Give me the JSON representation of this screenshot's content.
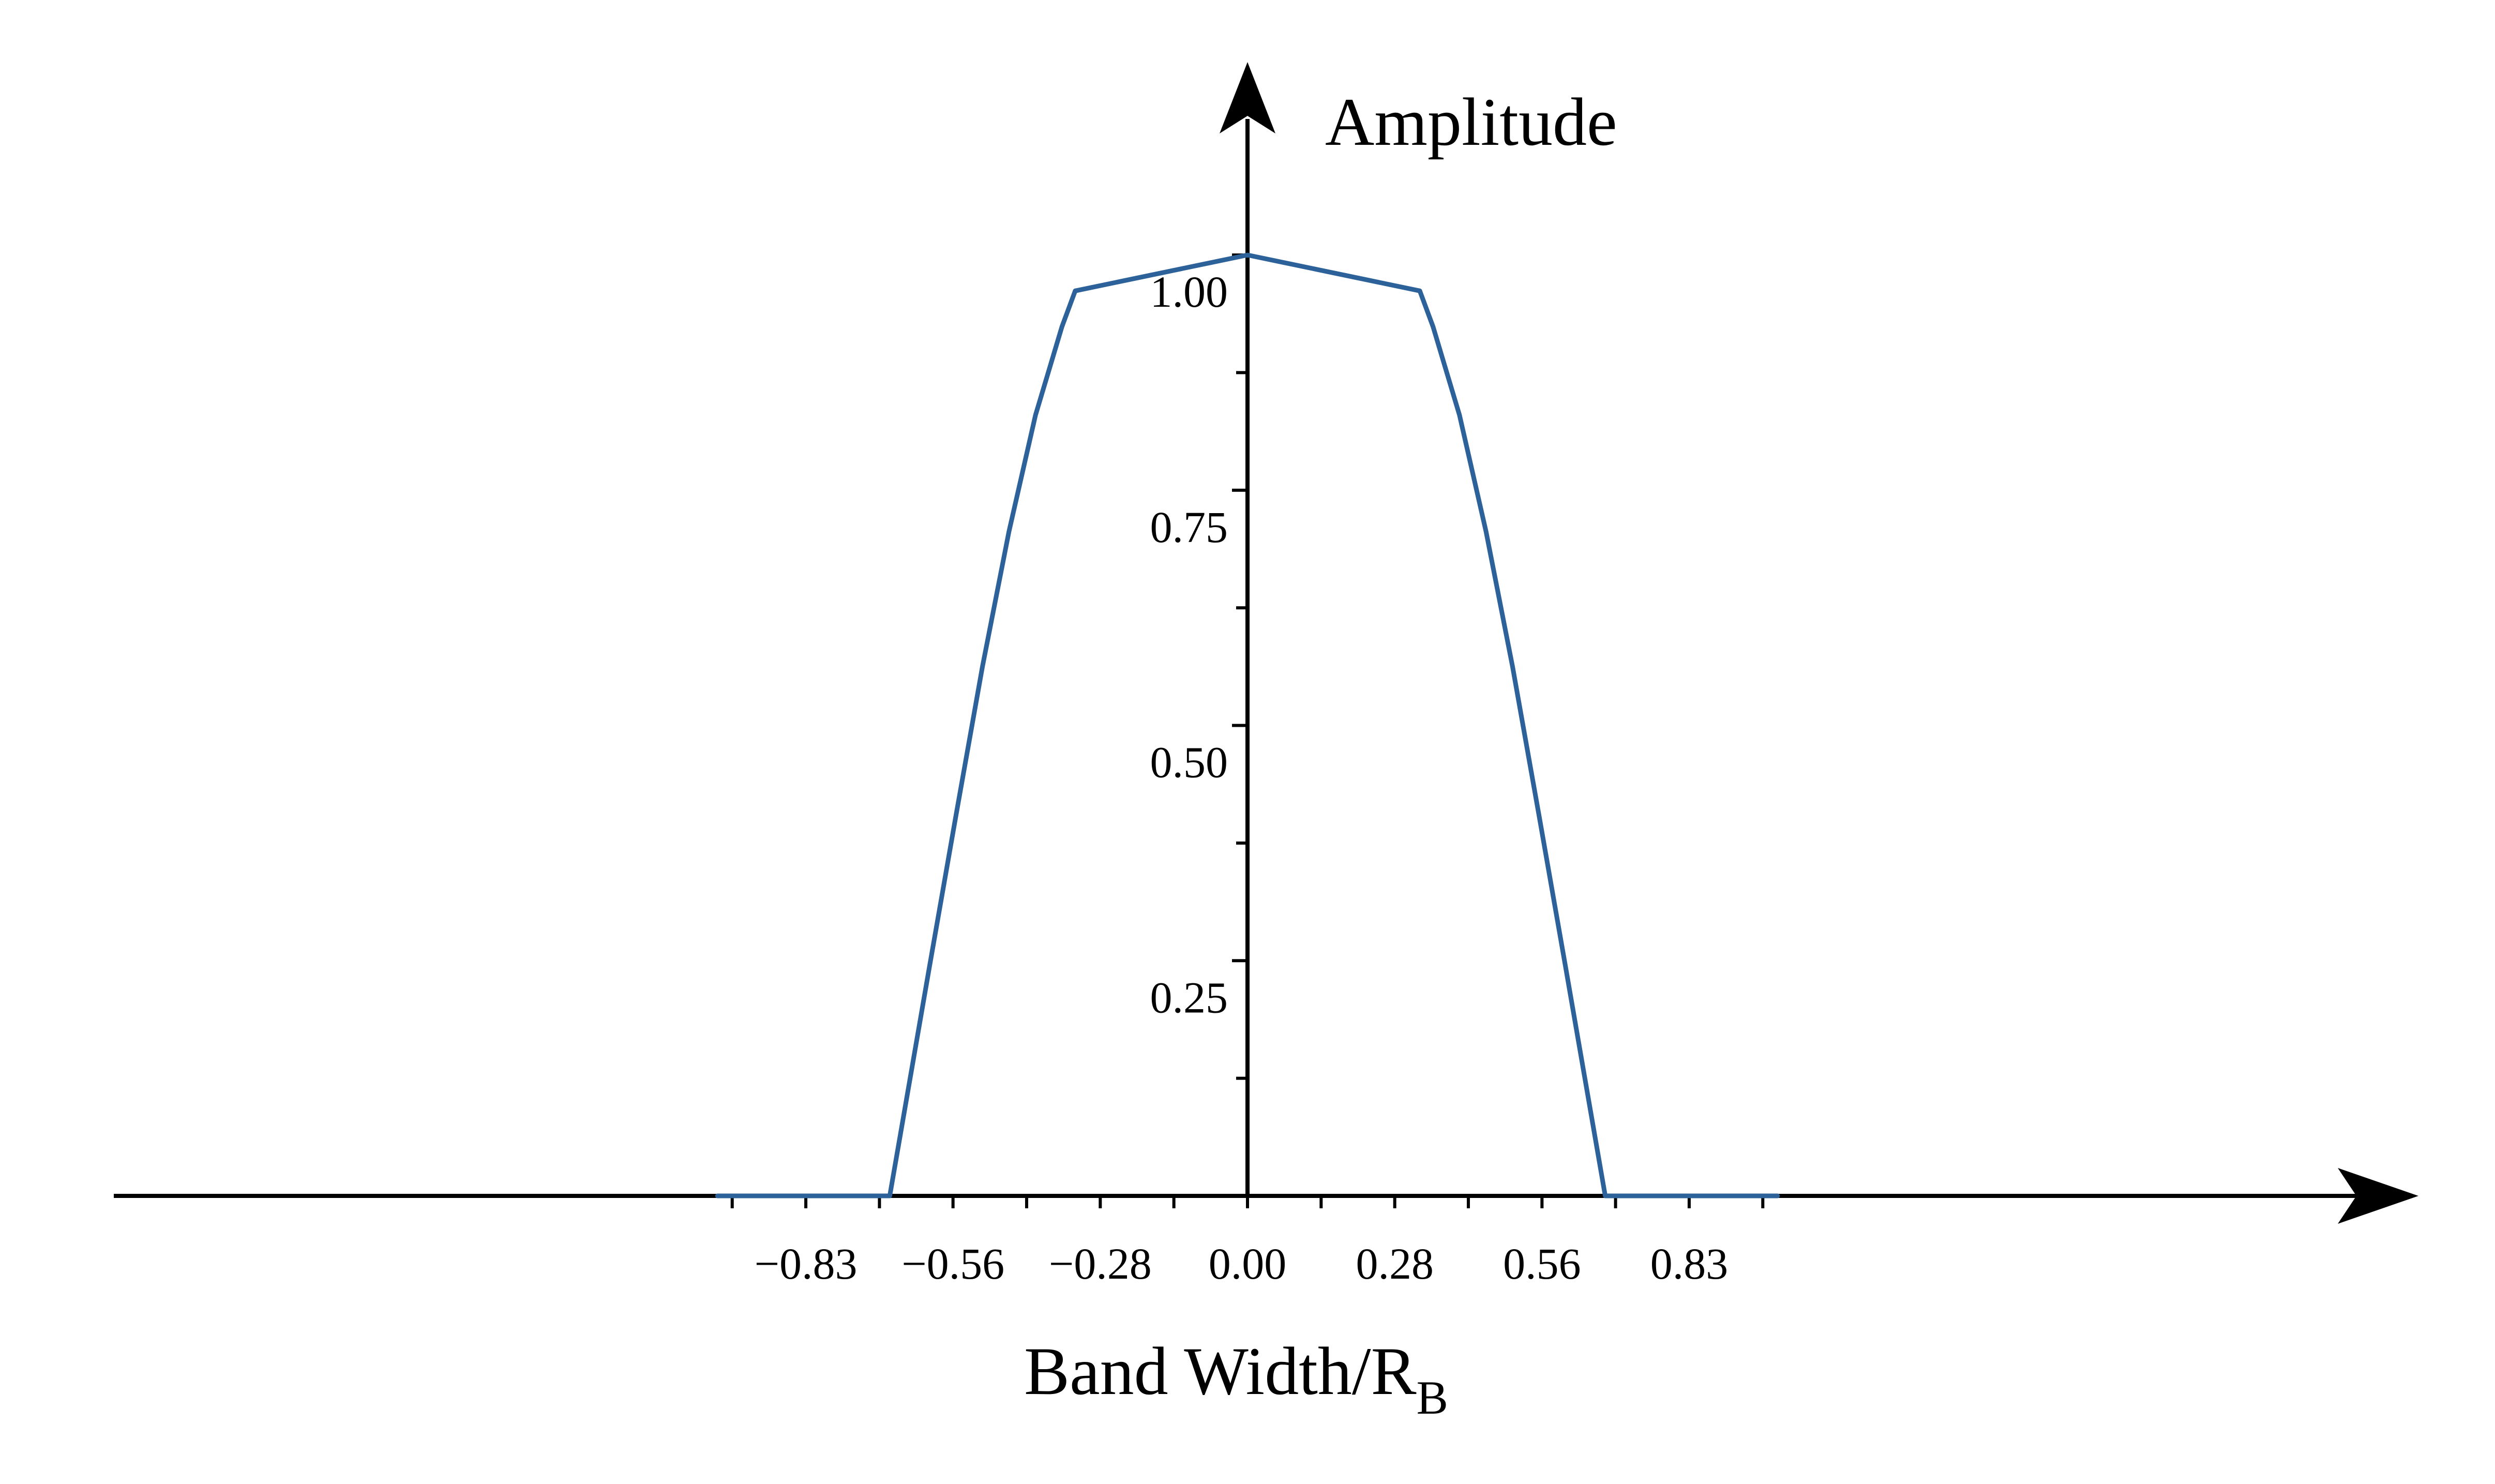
{
  "chart_data": {
    "type": "line",
    "title": "",
    "xlabel": "Band Width/R",
    "xlabel_subscript": "B",
    "ylabel": "Amplitude",
    "xlim": [
      -1.06,
      1.06
    ],
    "ylim": [
      0,
      1.0
    ],
    "x_tick_values": [
      -0.8333,
      -0.5556,
      -0.2778,
      0,
      0.2778,
      0.5556,
      0.8333
    ],
    "x_tick_labels": [
      "−0.83",
      "−0.56",
      "−0.28",
      "0.00",
      "0.28",
      "0.56",
      "0.83"
    ],
    "x_minor_tick_values": [
      -0.9722,
      -0.6944,
      -0.4167,
      -0.1389,
      0.1389,
      0.4167,
      0.6944,
      0.9722
    ],
    "y_tick_values": [
      0.25,
      0.5,
      0.75,
      1.0
    ],
    "y_tick_labels": [
      "0.25",
      "0.50",
      "0.75",
      "1.00"
    ],
    "y_minor_tick_values": [
      0.125,
      0.375,
      0.625,
      0.875
    ],
    "grid": false,
    "legend": "none",
    "line_color": "#2c6299",
    "series": [
      {
        "points": [
          [
            -1.0,
            0
          ],
          [
            -0.675,
            0
          ],
          [
            -0.6,
            0.2436
          ],
          [
            -0.55,
            0.4045
          ],
          [
            -0.5,
            0.5627
          ],
          [
            -0.45,
            0.7061
          ],
          [
            -0.4,
            0.8298
          ],
          [
            -0.35,
            0.9239
          ],
          [
            -0.325,
            0.9619
          ],
          [
            0,
            1.0
          ],
          [
            0.325,
            0.9619
          ],
          [
            0.35,
            0.9239
          ],
          [
            0.4,
            0.8298
          ],
          [
            0.45,
            0.7061
          ],
          [
            0.5,
            0.5627
          ],
          [
            0.55,
            0.4045
          ],
          [
            0.6,
            0.2436
          ],
          [
            0.675,
            0
          ],
          [
            1.0,
            0
          ]
        ]
      }
    ]
  }
}
